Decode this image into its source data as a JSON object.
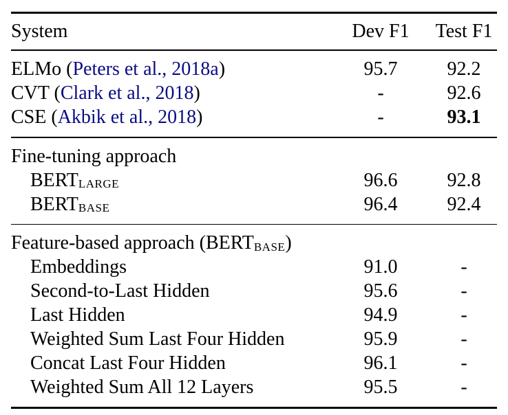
{
  "header": {
    "system": "System",
    "dev": "Dev F1",
    "test": "Test F1"
  },
  "prior": [
    {
      "pre": "ELMo (",
      "cite": "Peters et al., 2018a",
      "post": ")",
      "dev": "95.7",
      "test": "92.2"
    },
    {
      "pre": "CVT (",
      "cite": "Clark et al., 2018",
      "post": ")",
      "dev": "-",
      "test": "92.6"
    },
    {
      "pre": "CSE (",
      "cite": "Akbik et al., 2018",
      "post": ")",
      "dev": "-",
      "test": "93.1"
    }
  ],
  "finetuning": {
    "title": "Fine-tuning approach",
    "rows": [
      {
        "name": "BERT",
        "sub": "LARGE",
        "dev": "96.6",
        "test": "92.8"
      },
      {
        "name": "BERT",
        "sub": "BASE",
        "dev": "96.4",
        "test": "92.4"
      }
    ]
  },
  "featurebased": {
    "title_pre": "Feature-based approach (BERT",
    "title_sub": "BASE",
    "title_post": ")",
    "rows": [
      {
        "label": "Embeddings",
        "dev": "91.0",
        "test": "-"
      },
      {
        "label": "Second-to-Last Hidden",
        "dev": "95.6",
        "test": "-"
      },
      {
        "label": "Last Hidden",
        "dev": "94.9",
        "test": "-"
      },
      {
        "label": "Weighted Sum Last Four Hidden",
        "dev": "95.9",
        "test": "-"
      },
      {
        "label": "Concat Last Four Hidden",
        "dev": "96.1",
        "test": "-"
      },
      {
        "label": "Weighted Sum All 12 Layers",
        "dev": "95.5",
        "test": "-"
      }
    ]
  },
  "colors": {
    "citation": "#0b0b84",
    "text": "#000000",
    "background": "#ffffff"
  }
}
